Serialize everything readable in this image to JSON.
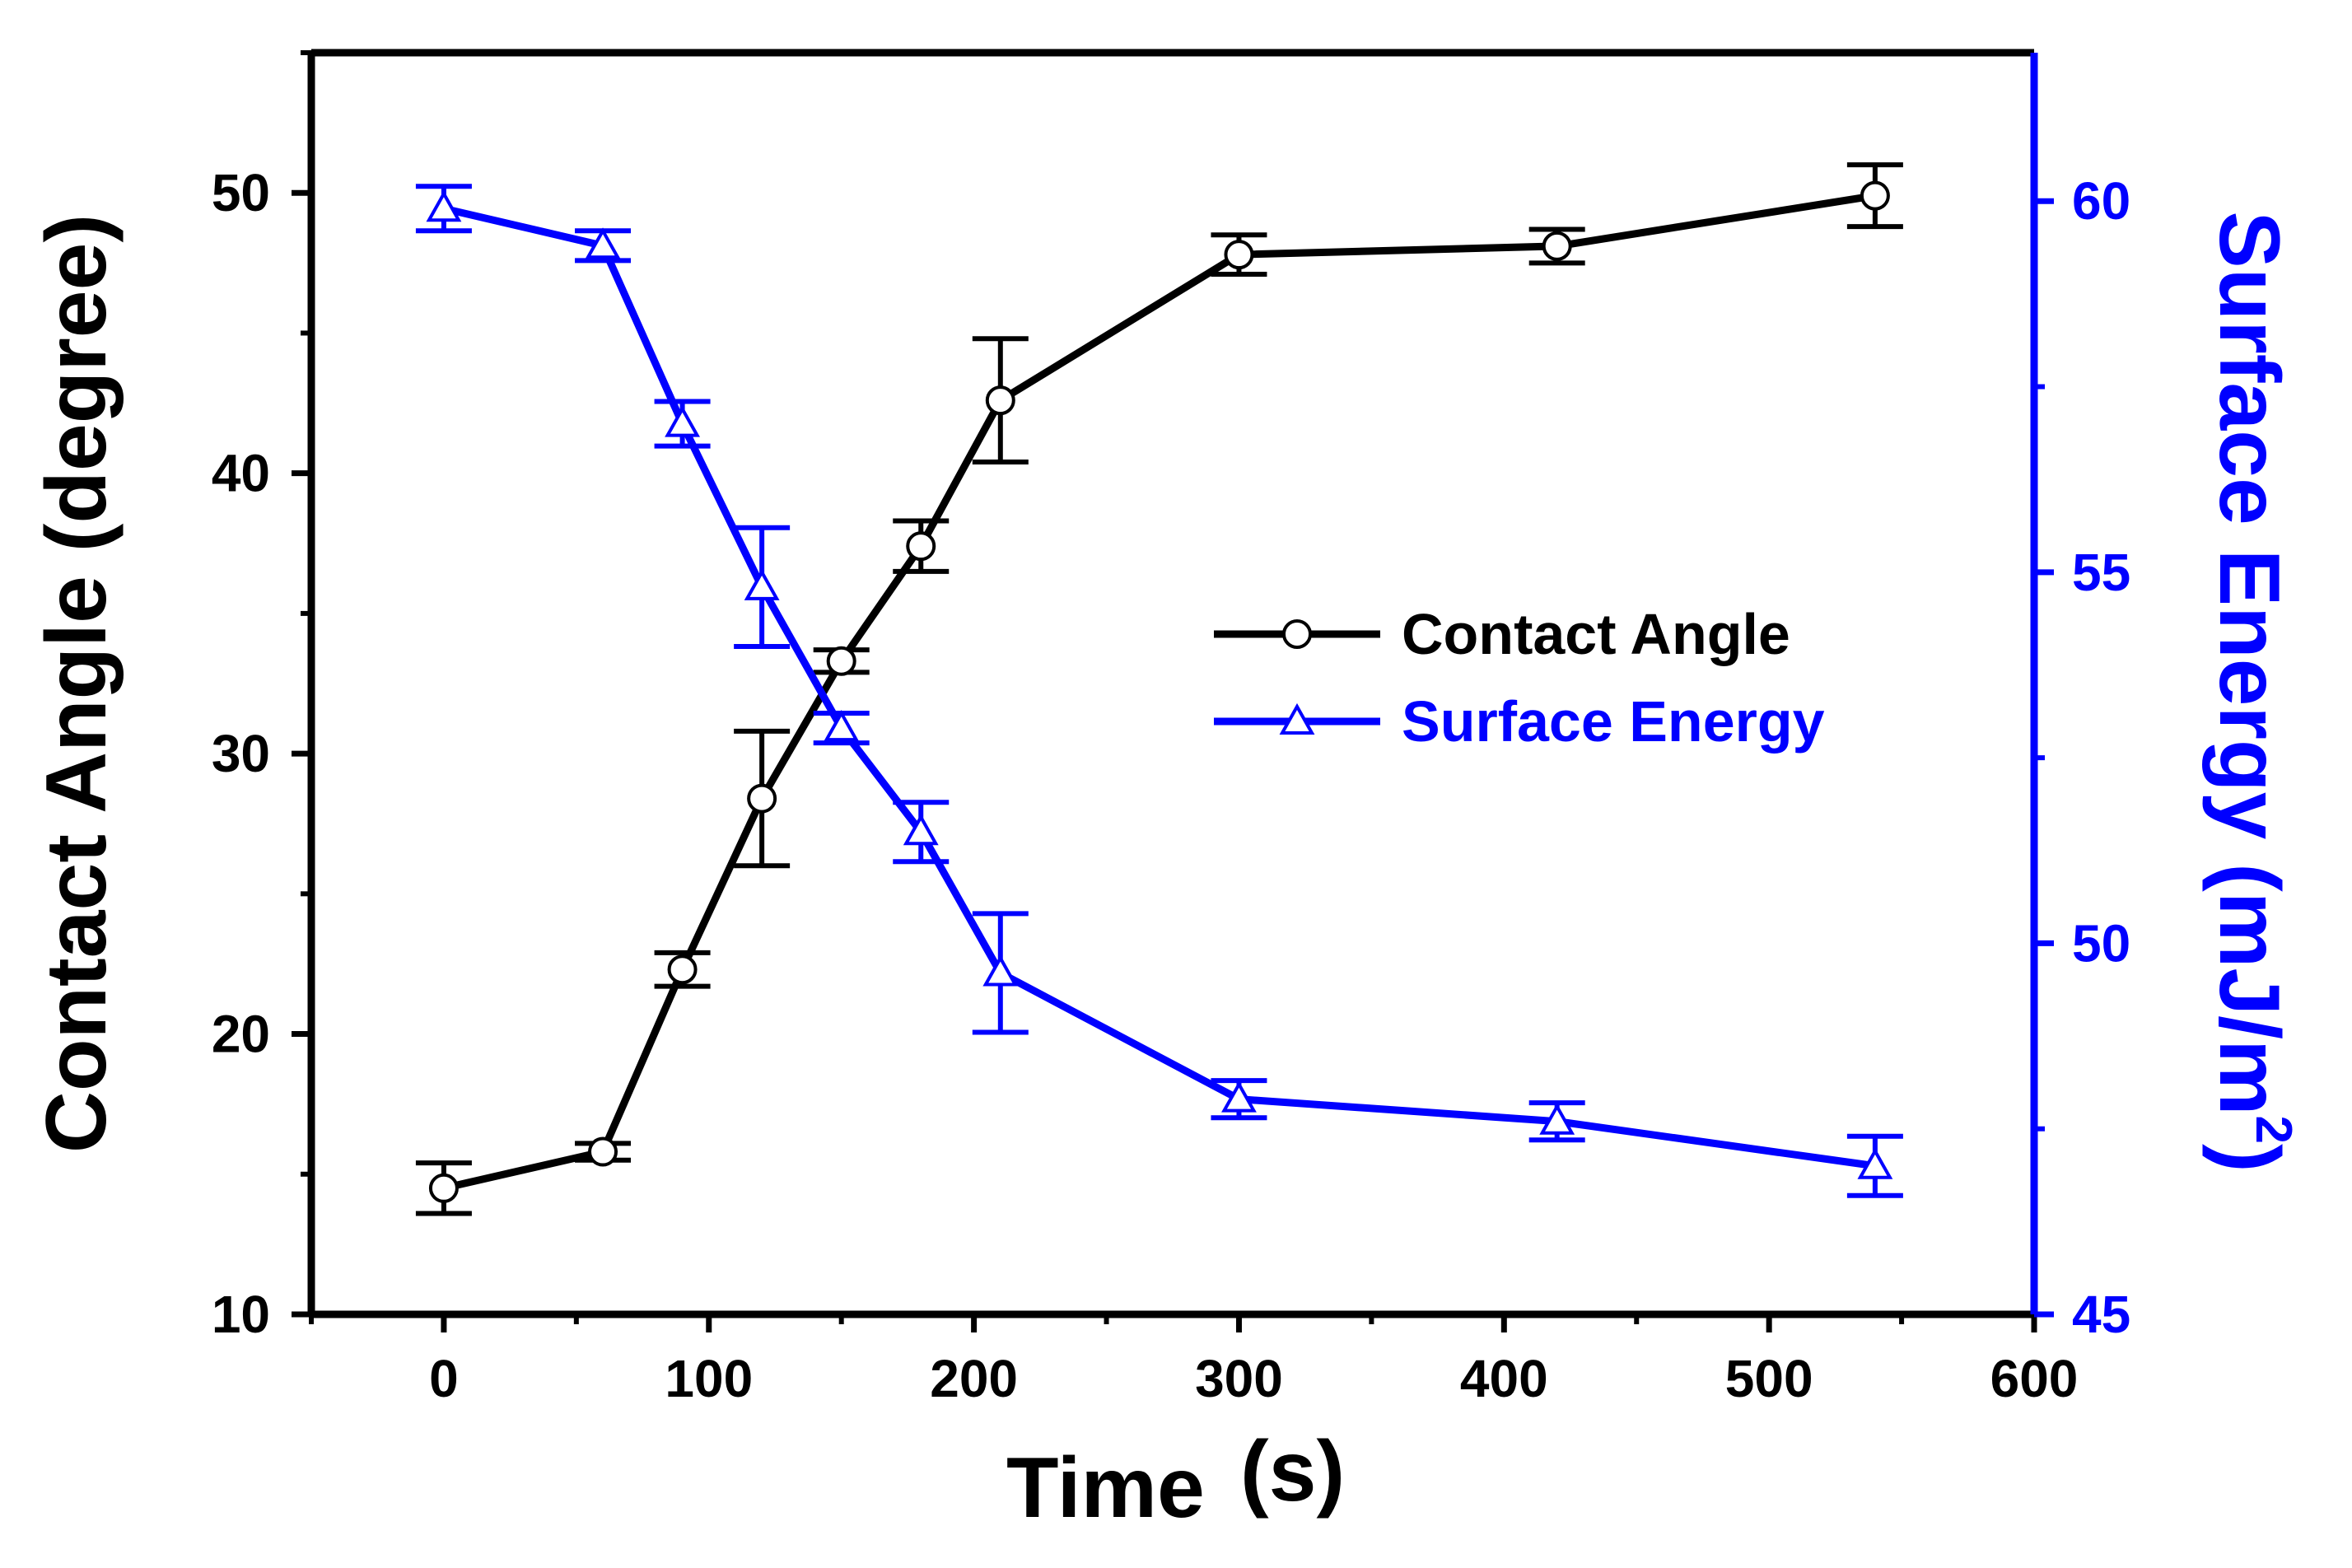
{
  "chart_data": {
    "type": "line",
    "title": "",
    "x": [
      0,
      60,
      90,
      120,
      150,
      180,
      210,
      300,
      420,
      540
    ],
    "xlabel": "Time",
    "xlabel_unit": "(s)",
    "xlim": [
      -50,
      600
    ],
    "xticks": [
      0,
      100,
      200,
      300,
      400,
      500,
      600
    ],
    "ylabel": "Contact Angle (degree)",
    "ylim": [
      10,
      55
    ],
    "yticks": [
      10,
      20,
      30,
      40,
      50
    ],
    "y2label": "Surface Energy (mJ/m",
    "y2label_sup": "2",
    "y2label_close": ")",
    "y2lim": [
      45,
      62
    ],
    "y2ticks": [
      45,
      50,
      55,
      60
    ],
    "legend_position": "center-right",
    "series": [
      {
        "name": "Contact Angle",
        "axis": "left",
        "color": "#000000",
        "marker": "circle",
        "values": [
          14.5,
          15.8,
          22.3,
          28.4,
          33.3,
          37.4,
          42.6,
          47.8,
          48.1,
          49.9
        ],
        "errors": [
          0.9,
          0.3,
          0.6,
          2.4,
          0.4,
          0.9,
          2.2,
          0.7,
          0.6,
          1.1
        ]
      },
      {
        "name": "Surface Energy",
        "axis": "right",
        "color": "#0000ff",
        "marker": "triangle",
        "values": [
          59.9,
          59.4,
          57.0,
          54.8,
          52.9,
          51.5,
          49.6,
          47.9,
          47.6,
          47.0
        ],
        "errors": [
          0.3,
          0.2,
          0.3,
          0.8,
          0.2,
          0.4,
          0.8,
          0.25,
          0.25,
          0.4
        ]
      }
    ]
  }
}
